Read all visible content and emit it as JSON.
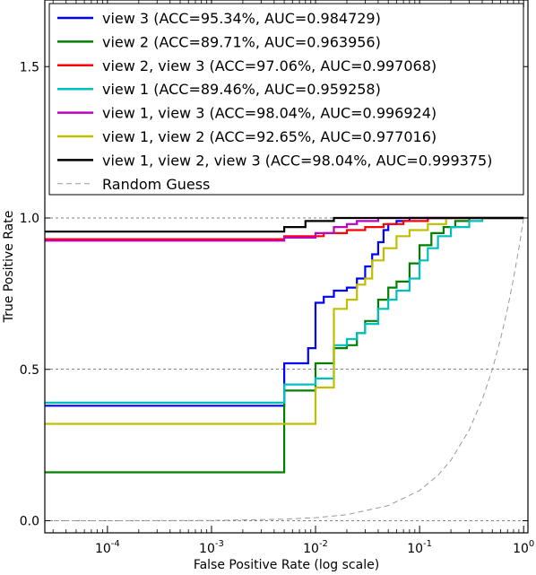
{
  "chart_data": {
    "type": "line",
    "title": "",
    "xlabel": "False Positive Rate (log scale)",
    "ylabel": "True Positive Rate",
    "x_scale": "log",
    "xlim": [
      2.5e-05,
      1.1
    ],
    "ylim": [
      -0.04,
      1.72
    ],
    "x_ticks": [
      {
        "value": 0.0001,
        "base": "10",
        "exp": "-4"
      },
      {
        "value": 0.001,
        "base": "10",
        "exp": "-3"
      },
      {
        "value": 0.01,
        "base": "10",
        "exp": "-2"
      },
      {
        "value": 0.1,
        "base": "10",
        "exp": "-1"
      },
      {
        "value": 1,
        "base": "10",
        "exp": "0"
      }
    ],
    "y_ticks": [
      {
        "value": 0.0,
        "label": "0.0"
      },
      {
        "value": 0.5,
        "label": "0.5"
      },
      {
        "value": 1.0,
        "label": "1.0"
      },
      {
        "value": 1.5,
        "label": "1.5"
      }
    ],
    "grid": "horizontal dashed at y-ticks",
    "legend_position": "top",
    "series": [
      {
        "name": "view 3 (ACC=95.34%, AUC=0.984729)",
        "color": "#0000ff",
        "points": [
          [
            2.5e-05,
            0.38
          ],
          [
            0.005,
            0.38
          ],
          [
            0.005,
            0.52
          ],
          [
            0.0085,
            0.52
          ],
          [
            0.0085,
            0.57
          ],
          [
            0.01,
            0.57
          ],
          [
            0.01,
            0.72
          ],
          [
            0.012,
            0.72
          ],
          [
            0.012,
            0.74
          ],
          [
            0.015,
            0.74
          ],
          [
            0.015,
            0.76
          ],
          [
            0.02,
            0.76
          ],
          [
            0.02,
            0.77
          ],
          [
            0.025,
            0.77
          ],
          [
            0.025,
            0.8
          ],
          [
            0.03,
            0.8
          ],
          [
            0.03,
            0.84
          ],
          [
            0.035,
            0.84
          ],
          [
            0.035,
            0.88
          ],
          [
            0.04,
            0.88
          ],
          [
            0.04,
            0.92
          ],
          [
            0.045,
            0.92
          ],
          [
            0.045,
            0.96
          ],
          [
            0.05,
            0.96
          ],
          [
            0.05,
            0.98
          ],
          [
            0.06,
            0.98
          ],
          [
            0.06,
            0.99
          ],
          [
            0.08,
            0.99
          ],
          [
            0.08,
            1.0
          ],
          [
            1.0,
            1.0
          ]
        ]
      },
      {
        "name": "view 2 (ACC=89.71%, AUC=0.963956)",
        "color": "#008000",
        "points": [
          [
            2.5e-05,
            0.16
          ],
          [
            0.005,
            0.16
          ],
          [
            0.005,
            0.43
          ],
          [
            0.01,
            0.43
          ],
          [
            0.01,
            0.52
          ],
          [
            0.015,
            0.52
          ],
          [
            0.015,
            0.57
          ],
          [
            0.02,
            0.57
          ],
          [
            0.02,
            0.58
          ],
          [
            0.025,
            0.58
          ],
          [
            0.025,
            0.62
          ],
          [
            0.03,
            0.62
          ],
          [
            0.03,
            0.66
          ],
          [
            0.04,
            0.66
          ],
          [
            0.04,
            0.73
          ],
          [
            0.05,
            0.73
          ],
          [
            0.05,
            0.77
          ],
          [
            0.06,
            0.77
          ],
          [
            0.06,
            0.79
          ],
          [
            0.08,
            0.79
          ],
          [
            0.08,
            0.85
          ],
          [
            0.1,
            0.85
          ],
          [
            0.1,
            0.91
          ],
          [
            0.13,
            0.91
          ],
          [
            0.13,
            0.95
          ],
          [
            0.17,
            0.95
          ],
          [
            0.17,
            0.97
          ],
          [
            0.22,
            0.97
          ],
          [
            0.22,
            0.99
          ],
          [
            0.3,
            0.99
          ],
          [
            0.3,
            1.0
          ],
          [
            1.0,
            1.0
          ]
        ]
      },
      {
        "name": "view 2, view 3 (ACC=97.06%, AUC=0.997068)",
        "color": "#ff0000",
        "points": [
          [
            2.5e-05,
            0.93
          ],
          [
            0.005,
            0.93
          ],
          [
            0.005,
            0.94
          ],
          [
            0.012,
            0.94
          ],
          [
            0.012,
            0.95
          ],
          [
            0.02,
            0.95
          ],
          [
            0.02,
            0.96
          ],
          [
            0.03,
            0.96
          ],
          [
            0.03,
            0.97
          ],
          [
            0.045,
            0.97
          ],
          [
            0.045,
            0.98
          ],
          [
            0.07,
            0.98
          ],
          [
            0.07,
            0.99
          ],
          [
            0.12,
            0.99
          ],
          [
            0.12,
            1.0
          ],
          [
            1.0,
            1.0
          ]
        ]
      },
      {
        "name": "view 1 (ACC=89.46%, AUC=0.959258)",
        "color": "#00bfbf",
        "points": [
          [
            2.5e-05,
            0.39
          ],
          [
            0.005,
            0.39
          ],
          [
            0.005,
            0.45
          ],
          [
            0.01,
            0.45
          ],
          [
            0.01,
            0.47
          ],
          [
            0.015,
            0.47
          ],
          [
            0.015,
            0.58
          ],
          [
            0.02,
            0.58
          ],
          [
            0.02,
            0.6
          ],
          [
            0.025,
            0.6
          ],
          [
            0.025,
            0.62
          ],
          [
            0.03,
            0.62
          ],
          [
            0.03,
            0.65
          ],
          [
            0.04,
            0.65
          ],
          [
            0.04,
            0.7
          ],
          [
            0.05,
            0.7
          ],
          [
            0.05,
            0.73
          ],
          [
            0.06,
            0.73
          ],
          [
            0.06,
            0.76
          ],
          [
            0.08,
            0.76
          ],
          [
            0.08,
            0.8
          ],
          [
            0.1,
            0.8
          ],
          [
            0.1,
            0.86
          ],
          [
            0.12,
            0.86
          ],
          [
            0.12,
            0.9
          ],
          [
            0.15,
            0.9
          ],
          [
            0.15,
            0.94
          ],
          [
            0.2,
            0.94
          ],
          [
            0.2,
            0.97
          ],
          [
            0.3,
            0.97
          ],
          [
            0.3,
            0.99
          ],
          [
            0.4,
            0.99
          ],
          [
            0.4,
            1.0
          ],
          [
            1.0,
            1.0
          ]
        ]
      },
      {
        "name": "view 1, view 3 (ACC=98.04%, AUC=0.996924)",
        "color": "#bf00bf",
        "points": [
          [
            2.5e-05,
            0.925
          ],
          [
            0.005,
            0.925
          ],
          [
            0.005,
            0.935
          ],
          [
            0.01,
            0.935
          ],
          [
            0.01,
            0.95
          ],
          [
            0.015,
            0.95
          ],
          [
            0.015,
            0.97
          ],
          [
            0.02,
            0.97
          ],
          [
            0.02,
            0.98
          ],
          [
            0.025,
            0.98
          ],
          [
            0.025,
            0.99
          ],
          [
            0.04,
            0.99
          ],
          [
            0.04,
            1.0
          ],
          [
            1.0,
            1.0
          ]
        ]
      },
      {
        "name": "view 1, view 2 (ACC=92.65%, AUC=0.977016)",
        "color": "#bfbf00",
        "points": [
          [
            2.5e-05,
            0.32
          ],
          [
            0.005,
            0.32
          ],
          [
            0.01,
            0.32
          ],
          [
            0.01,
            0.44
          ],
          [
            0.015,
            0.44
          ],
          [
            0.015,
            0.7
          ],
          [
            0.02,
            0.7
          ],
          [
            0.02,
            0.73
          ],
          [
            0.025,
            0.73
          ],
          [
            0.025,
            0.78
          ],
          [
            0.03,
            0.78
          ],
          [
            0.03,
            0.8
          ],
          [
            0.035,
            0.8
          ],
          [
            0.035,
            0.86
          ],
          [
            0.045,
            0.86
          ],
          [
            0.045,
            0.9
          ],
          [
            0.06,
            0.9
          ],
          [
            0.06,
            0.94
          ],
          [
            0.08,
            0.94
          ],
          [
            0.08,
            0.96
          ],
          [
            0.12,
            0.96
          ],
          [
            0.12,
            0.98
          ],
          [
            0.18,
            0.98
          ],
          [
            0.18,
            1.0
          ],
          [
            1.0,
            1.0
          ]
        ]
      },
      {
        "name": "view 1, view 2, view 3 (ACC=98.04%, AUC=0.999375)",
        "color": "#000000",
        "points": [
          [
            2.5e-05,
            0.955
          ],
          [
            0.005,
            0.955
          ],
          [
            0.005,
            0.97
          ],
          [
            0.008,
            0.97
          ],
          [
            0.008,
            0.99
          ],
          [
            0.015,
            0.99
          ],
          [
            0.015,
            1.0
          ],
          [
            1.0,
            1.0
          ]
        ]
      },
      {
        "name": "Random Guess",
        "color": "#999999",
        "dashed": true,
        "points": [
          [
            2.5e-05,
            2.5e-05
          ],
          [
            0.0001,
            0.0001
          ],
          [
            0.001,
            0.001
          ],
          [
            0.005,
            0.005
          ],
          [
            0.01,
            0.01
          ],
          [
            0.02,
            0.02
          ],
          [
            0.05,
            0.05
          ],
          [
            0.1,
            0.1
          ],
          [
            0.15,
            0.15
          ],
          [
            0.2,
            0.2
          ],
          [
            0.3,
            0.3
          ],
          [
            0.4,
            0.4
          ],
          [
            0.5,
            0.5
          ],
          [
            0.6,
            0.6
          ],
          [
            0.7,
            0.7
          ],
          [
            0.8,
            0.8
          ],
          [
            0.9,
            0.9
          ],
          [
            1.0,
            1.0
          ]
        ]
      }
    ]
  }
}
